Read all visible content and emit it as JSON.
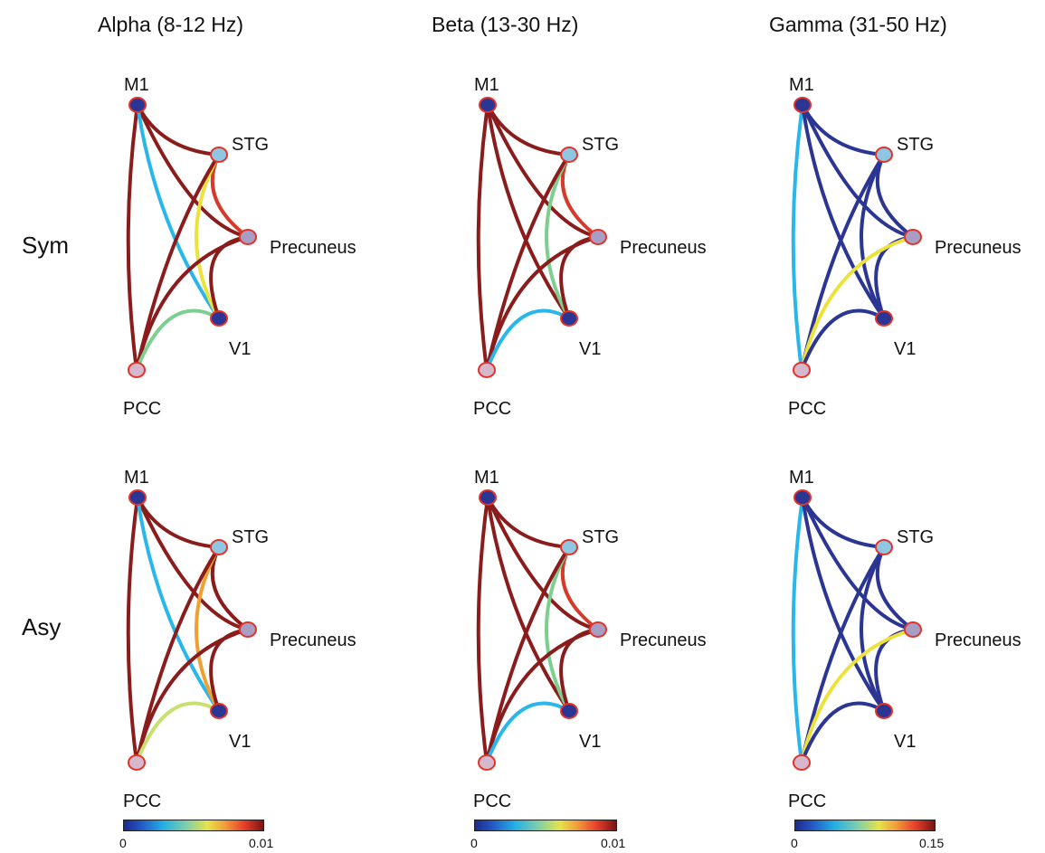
{
  "columns": [
    {
      "title": "Alpha (8-12 Hz)",
      "colorbar": {
        "min": "0",
        "max": "0.01"
      }
    },
    {
      "title": "Beta (13-30 Hz)",
      "colorbar": {
        "min": "0",
        "max": "0.01"
      }
    },
    {
      "title": "Gamma (31-50 Hz)",
      "colorbar": {
        "min": "0",
        "max": "0.15"
      }
    }
  ],
  "rows": [
    {
      "label": "Sym"
    },
    {
      "label": "Asy"
    }
  ],
  "nodes": {
    "M1": "M1",
    "STG": "STG",
    "Precuneus": "Precuneus",
    "V1": "V1",
    "PCC": "PCC"
  },
  "colors": {
    "dark_red": "#8b1c1c",
    "red": "#d63a2a",
    "orange": "#f0a030",
    "yellow": "#ede23a",
    "yellow_green": "#c8e070",
    "green": "#7ccf8e",
    "cyan": "#29b6ea",
    "dark_blue": "#2b3593"
  },
  "panels": [
    {
      "col": 0,
      "row": 0,
      "edges": [
        {
          "from": "M1",
          "to": "PCC",
          "color": "dark_red"
        },
        {
          "from": "M1",
          "to": "STG",
          "color": "dark_red"
        },
        {
          "from": "M1",
          "to": "Precuneus",
          "color": "dark_red"
        },
        {
          "from": "M1",
          "to": "V1",
          "color": "cyan"
        },
        {
          "from": "STG",
          "to": "Precuneus",
          "color": "red"
        },
        {
          "from": "STG",
          "to": "V1",
          "color": "yellow"
        },
        {
          "from": "STG",
          "to": "PCC",
          "color": "dark_red"
        },
        {
          "from": "Precuneus",
          "to": "V1",
          "color": "dark_red"
        },
        {
          "from": "Precuneus",
          "to": "PCC",
          "color": "dark_red"
        },
        {
          "from": "V1",
          "to": "PCC",
          "color": "green"
        }
      ]
    },
    {
      "col": 1,
      "row": 0,
      "edges": [
        {
          "from": "M1",
          "to": "PCC",
          "color": "dark_red"
        },
        {
          "from": "M1",
          "to": "STG",
          "color": "dark_red"
        },
        {
          "from": "M1",
          "to": "Precuneus",
          "color": "dark_red"
        },
        {
          "from": "M1",
          "to": "V1",
          "color": "dark_red"
        },
        {
          "from": "STG",
          "to": "Precuneus",
          "color": "red"
        },
        {
          "from": "STG",
          "to": "V1",
          "color": "green"
        },
        {
          "from": "STG",
          "to": "PCC",
          "color": "dark_red"
        },
        {
          "from": "Precuneus",
          "to": "V1",
          "color": "dark_red"
        },
        {
          "from": "Precuneus",
          "to": "PCC",
          "color": "dark_red"
        },
        {
          "from": "V1",
          "to": "PCC",
          "color": "cyan"
        }
      ]
    },
    {
      "col": 2,
      "row": 0,
      "edges": [
        {
          "from": "M1",
          "to": "PCC",
          "color": "cyan"
        },
        {
          "from": "M1",
          "to": "STG",
          "color": "dark_blue"
        },
        {
          "from": "M1",
          "to": "Precuneus",
          "color": "dark_blue"
        },
        {
          "from": "M1",
          "to": "V1",
          "color": "dark_blue"
        },
        {
          "from": "STG",
          "to": "Precuneus",
          "color": "dark_blue"
        },
        {
          "from": "STG",
          "to": "V1",
          "color": "dark_blue"
        },
        {
          "from": "STG",
          "to": "PCC",
          "color": "dark_blue"
        },
        {
          "from": "Precuneus",
          "to": "V1",
          "color": "dark_blue"
        },
        {
          "from": "Precuneus",
          "to": "PCC",
          "color": "yellow"
        },
        {
          "from": "V1",
          "to": "PCC",
          "color": "dark_blue"
        }
      ]
    },
    {
      "col": 0,
      "row": 1,
      "edges": [
        {
          "from": "M1",
          "to": "PCC",
          "color": "dark_red"
        },
        {
          "from": "M1",
          "to": "STG",
          "color": "dark_red"
        },
        {
          "from": "M1",
          "to": "Precuneus",
          "color": "dark_red"
        },
        {
          "from": "M1",
          "to": "V1",
          "color": "cyan"
        },
        {
          "from": "STG",
          "to": "Precuneus",
          "color": "dark_red"
        },
        {
          "from": "STG",
          "to": "V1",
          "color": "orange"
        },
        {
          "from": "STG",
          "to": "PCC",
          "color": "dark_red"
        },
        {
          "from": "Precuneus",
          "to": "V1",
          "color": "dark_red"
        },
        {
          "from": "Precuneus",
          "to": "PCC",
          "color": "dark_red"
        },
        {
          "from": "V1",
          "to": "PCC",
          "color": "yellow_green"
        }
      ]
    },
    {
      "col": 1,
      "row": 1,
      "edges": [
        {
          "from": "M1",
          "to": "PCC",
          "color": "dark_red"
        },
        {
          "from": "M1",
          "to": "STG",
          "color": "dark_red"
        },
        {
          "from": "M1",
          "to": "Precuneus",
          "color": "dark_red"
        },
        {
          "from": "M1",
          "to": "V1",
          "color": "dark_red"
        },
        {
          "from": "STG",
          "to": "Precuneus",
          "color": "red"
        },
        {
          "from": "STG",
          "to": "V1",
          "color": "green"
        },
        {
          "from": "STG",
          "to": "PCC",
          "color": "dark_red"
        },
        {
          "from": "Precuneus",
          "to": "V1",
          "color": "dark_red"
        },
        {
          "from": "Precuneus",
          "to": "PCC",
          "color": "dark_red"
        },
        {
          "from": "V1",
          "to": "PCC",
          "color": "cyan"
        }
      ]
    },
    {
      "col": 2,
      "row": 1,
      "edges": [
        {
          "from": "M1",
          "to": "PCC",
          "color": "cyan"
        },
        {
          "from": "M1",
          "to": "STG",
          "color": "dark_blue"
        },
        {
          "from": "M1",
          "to": "Precuneus",
          "color": "dark_blue"
        },
        {
          "from": "M1",
          "to": "V1",
          "color": "dark_blue"
        },
        {
          "from": "STG",
          "to": "Precuneus",
          "color": "dark_blue"
        },
        {
          "from": "STG",
          "to": "V1",
          "color": "dark_blue"
        },
        {
          "from": "STG",
          "to": "PCC",
          "color": "dark_blue"
        },
        {
          "from": "Precuneus",
          "to": "V1",
          "color": "dark_blue"
        },
        {
          "from": "Precuneus",
          "to": "PCC",
          "color": "yellow"
        },
        {
          "from": "V1",
          "to": "PCC",
          "color": "dark_blue"
        }
      ]
    }
  ]
}
